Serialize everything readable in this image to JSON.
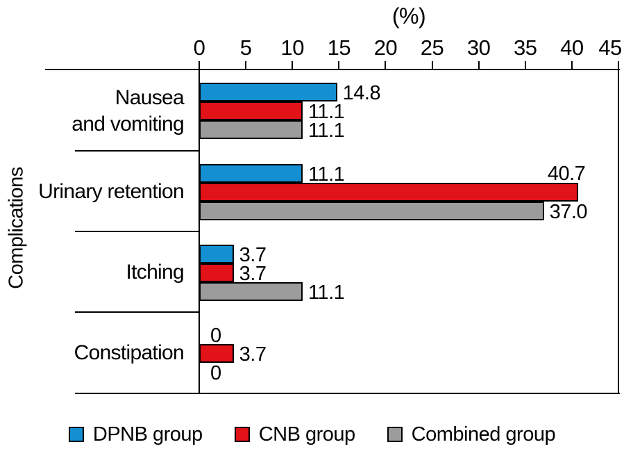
{
  "chart_data": {
    "type": "bar",
    "orientation": "horizontal",
    "axis_title": "(%)",
    "ylabel": "Complications",
    "xlim": [
      0,
      45
    ],
    "xticks": [
      0,
      5,
      10,
      15,
      20,
      25,
      30,
      35,
      40,
      45
    ],
    "grid": false,
    "legend_position": "bottom",
    "categories": [
      "Nausea and vomiting",
      "Urinary retention",
      "Itching",
      "Constipation"
    ],
    "categories_display": [
      "Nausea\nand vomiting",
      "Urinary retention",
      "Itching",
      "Constipation"
    ],
    "series": [
      {
        "name": "DPNB group",
        "color": "#148FD2",
        "values": [
          14.8,
          11.1,
          3.7,
          0
        ],
        "labels": [
          "14.8",
          "11.1",
          "3.7",
          "0"
        ]
      },
      {
        "name": "CNB group",
        "color": "#E11218",
        "values": [
          11.1,
          40.7,
          3.7,
          3.7
        ],
        "labels": [
          "11.1",
          "40.7",
          "3.7",
          "3.7"
        ]
      },
      {
        "name": "Combined group",
        "color": "#9C9C9C",
        "values": [
          11.1,
          37.0,
          11.1,
          0
        ],
        "labels": [
          "11.1",
          "37.0",
          "11.1",
          "0"
        ]
      }
    ]
  }
}
